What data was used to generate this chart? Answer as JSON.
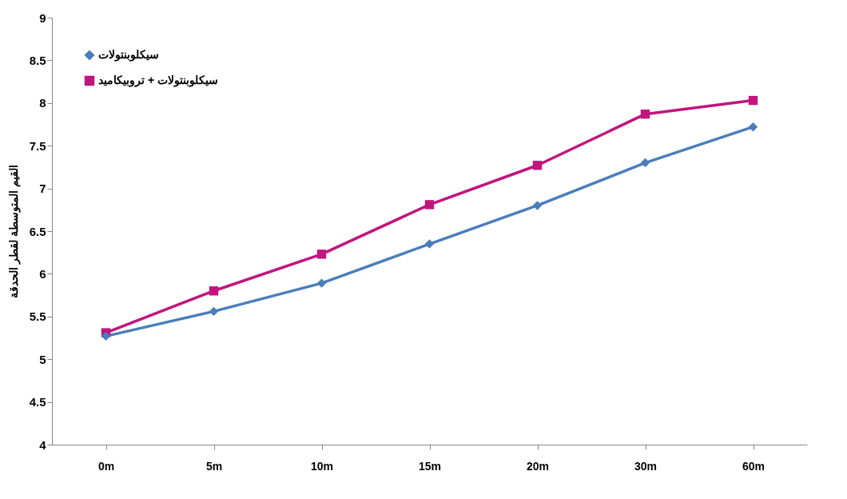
{
  "chart_data": {
    "type": "line",
    "ylabel": "القيم المتوسطة لقطر الحدقة",
    "categories": [
      "0m",
      "5m",
      "10m",
      "15m",
      "20m",
      "30m",
      "60m"
    ],
    "series": [
      {
        "name": "سيكلوبنتولات",
        "color": "#4a7ebb",
        "marker": "diamond",
        "values": [
          5.27,
          5.56,
          5.89,
          6.35,
          6.8,
          7.3,
          7.72
        ]
      },
      {
        "name": "سيكلوبنتولات + تروبيكاميد",
        "color": "#c0157f",
        "marker": "square",
        "values": [
          5.31,
          5.8,
          6.23,
          6.81,
          7.27,
          7.87,
          8.03
        ]
      }
    ],
    "ylim": [
      4,
      9
    ],
    "yticks": [
      4,
      4.5,
      5,
      5.5,
      6,
      6.5,
      7,
      7.5,
      8,
      8.5,
      9
    ],
    "grid": false,
    "legend": "top left",
    "line_style": "solid"
  }
}
